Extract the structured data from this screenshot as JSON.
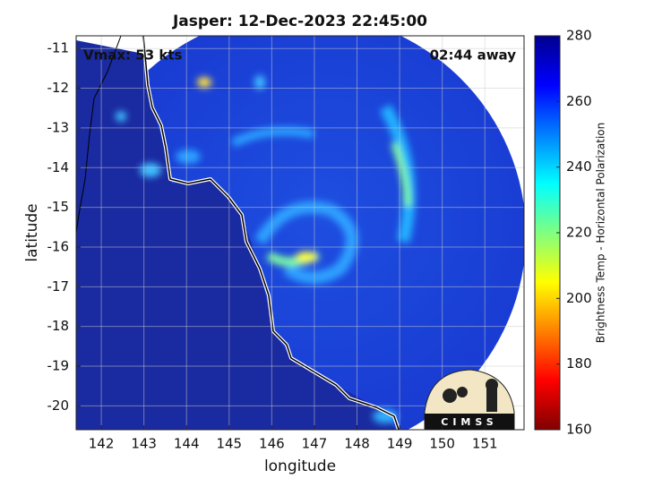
{
  "chart_data": {
    "type": "map",
    "title": "Jasper: 12-Dec-2023 22:45:00",
    "annotations": {
      "left": "Vmax: 53 kts",
      "right": "02:44 away"
    },
    "x_label": "longitude",
    "y_label": "latitude",
    "xlim": [
      141.41,
      151.92
    ],
    "ylim": [
      -20.6,
      -10.68
    ],
    "xticks": [
      142,
      143,
      144,
      145,
      146,
      147,
      148,
      149,
      150,
      151
    ],
    "yticks": [
      -11,
      -12,
      -13,
      -14,
      -15,
      -16,
      -17,
      -18,
      -19,
      -20
    ],
    "grid": true,
    "colorbar": {
      "label": "Brightness Temp - Horizontal Polarization",
      "lim": [
        160,
        280
      ],
      "ticks": [
        160,
        180,
        200,
        220,
        240,
        260,
        280
      ],
      "colors": [
        "#800000",
        "#ff0000",
        "#ff8000",
        "#ffff00",
        "#80ff80",
        "#00ffff",
        "#0080ff",
        "#0000ff",
        "#00008f"
      ]
    },
    "logo": "CIMSS"
  }
}
